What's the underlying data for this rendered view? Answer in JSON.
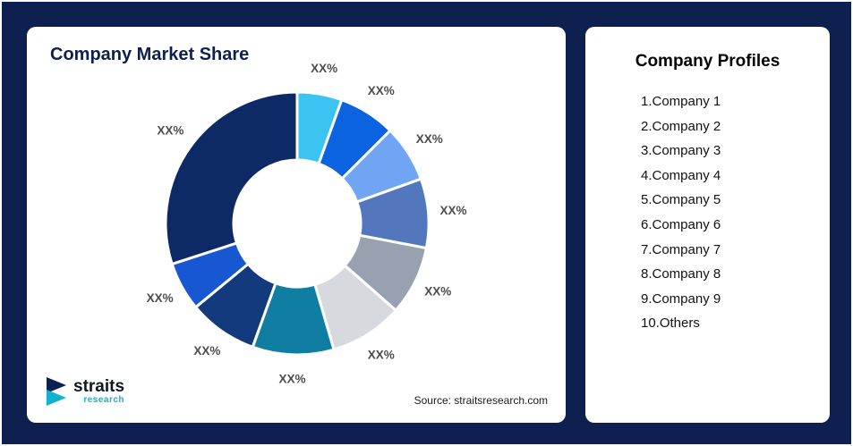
{
  "colors": {
    "page_background": "#0d2050",
    "card_background": "#ffffff",
    "chart_title": "#0d2050",
    "segment_label": "#4d4d4d",
    "logo_teal": "#12b2ce",
    "logo_dark": "#101820"
  },
  "left_card": {
    "title": "Company Market Share",
    "source": "Source: straitsresearch.com"
  },
  "logo": {
    "brand": "straits",
    "sub": "research"
  },
  "right_card": {
    "title": "Company Profiles",
    "items": [
      "1.Company 1",
      "2.Company 2",
      "3.Company 3",
      "4.Company 4",
      "5.Company 5",
      "6.Company 6",
      "7.Company 7",
      "8.Company 8",
      "9.Company 9",
      "10.Others"
    ]
  },
  "chart_data": {
    "type": "pie",
    "donut": true,
    "title": "Company Market Share",
    "start_angle_deg": 0,
    "direction": "clockwise",
    "inner_radius_ratio": 0.48,
    "value_labels_placeholder": true,
    "segments": [
      {
        "label": "XX%",
        "value": 5.5,
        "color": "#3bc4f2"
      },
      {
        "label": "XX%",
        "value": 7.0,
        "color": "#0b63e0"
      },
      {
        "label": "XX%",
        "value": 7.0,
        "color": "#6fa5f2"
      },
      {
        "label": "XX%",
        "value": 8.5,
        "color": "#5377bd"
      },
      {
        "label": "XX%",
        "value": 8.5,
        "color": "#97a1b0"
      },
      {
        "label": "XX%",
        "value": 9.0,
        "color": "#d6dade"
      },
      {
        "label": "XX%",
        "value": 10.0,
        "color": "#0f7ea2"
      },
      {
        "label": "XX%",
        "value": 8.5,
        "color": "#123a7d"
      },
      {
        "label": "XX%",
        "value": 6.0,
        "color": "#1757d2"
      },
      {
        "label": "XX%",
        "value": 30.0,
        "color": "#0d2a66"
      }
    ]
  }
}
